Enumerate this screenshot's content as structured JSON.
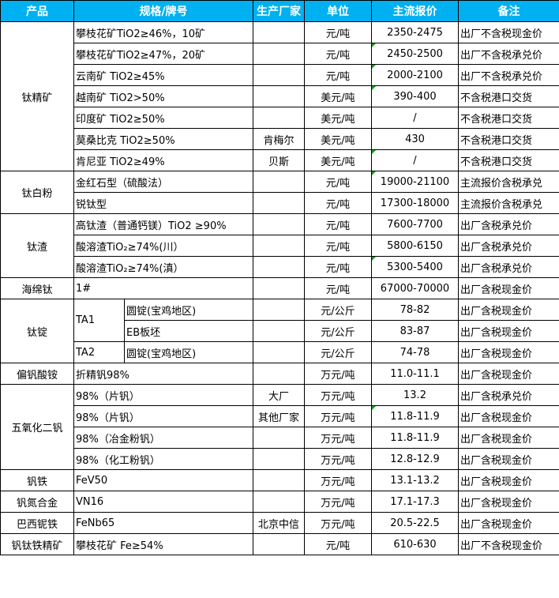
{
  "header": {
    "colors": {
      "header_bg": "#00B0F0",
      "header_text": "#FFFFFF"
    },
    "columns": [
      "产品",
      "规格/牌号",
      "生产厂家",
      "单位",
      "主流报价",
      "备注"
    ]
  },
  "groups": [
    {
      "product": "钛精矿",
      "rows": [
        {
          "spec": "攀枝花矿TiO2≥46%，10矿",
          "maker": "",
          "unit": "元/吨",
          "price": "2350-2475",
          "note": "出厂不含税现金价"
        },
        {
          "spec": "攀枝花矿TiO2≥47%，20矿",
          "maker": "",
          "unit": "元/吨",
          "price": "2450-2500",
          "note": "出厂不含税承兑价"
        },
        {
          "spec": "云南矿 TiO2≥45%",
          "maker": "",
          "unit": "元/吨",
          "price": "2000-2100",
          "note": "出厂不含税承兑价"
        },
        {
          "spec": "越南矿 TiO2>50%",
          "maker": "",
          "unit": "美元/吨",
          "price": "390-400",
          "note": "不含税港口交货"
        },
        {
          "spec": "印度矿 TiO2≥50%",
          "maker": "",
          "unit": "美元/吨",
          "price": "/",
          "note": "不含税港口交货"
        },
        {
          "spec": "莫桑比克 TiO2≥50%",
          "maker": "肯梅尔",
          "unit": "美元/吨",
          "price": "430",
          "note": "不含税港口交货"
        },
        {
          "spec": "肯尼亚 TiO2≥49%",
          "maker": "贝斯",
          "unit": "美元/吨",
          "price": "/",
          "note": "不含税港口交货"
        }
      ]
    },
    {
      "product": "钛白粉",
      "rows": [
        {
          "spec": "金红石型（硫酸法）",
          "maker": "",
          "unit": "元/吨",
          "price": "19000-21100",
          "note": "主流报价含税承兑"
        },
        {
          "spec": "锐钛型",
          "maker": "",
          "unit": "元/吨",
          "price": "17300-18000",
          "note": "主流报价含税承兑"
        }
      ]
    },
    {
      "product": "钛渣",
      "rows": [
        {
          "spec": "高钛渣（普通钙镁）TiO2 ≥90%",
          "maker": "",
          "unit": "元/吨",
          "price": "7600-7700",
          "note": "出厂含税承兑价"
        },
        {
          "spec": "酸溶渣TiO₂≥74%(川）",
          "maker": "",
          "unit": "元/吨",
          "price": "5800-6150",
          "note": "出厂含税承兑价"
        },
        {
          "spec": "酸溶渣TiO₂≥74%(滇）",
          "maker": "",
          "unit": "元/吨",
          "price": "5300-5400",
          "note": "出厂含税承兑价"
        }
      ]
    },
    {
      "product": "海绵钛",
      "rows": [
        {
          "spec": "1#",
          "maker": "",
          "unit": "元/吨",
          "price": "67000-70000",
          "note": "出厂含税现金价"
        }
      ]
    },
    {
      "product": "钛锭",
      "rows": [
        {
          "grade": "TA1",
          "spec": "圆锭(宝鸡地区)",
          "maker": "",
          "unit": "元/公斤",
          "price": "78-82",
          "note": "出厂含税现金价"
        },
        {
          "grade": "TA1",
          "spec": "EB板坯",
          "maker": "",
          "unit": "元/公斤",
          "price": "83-87",
          "note": "出厂含税现金价"
        },
        {
          "grade": "TA2",
          "spec": "圆锭(宝鸡地区)",
          "maker": "",
          "unit": "元/公斤",
          "price": "74-78",
          "note": "出厂含税现金价"
        }
      ]
    },
    {
      "product": "偏钒酸铵",
      "rows": [
        {
          "spec": "折精钒98%",
          "maker": "",
          "unit": "万元/吨",
          "price": "11.0-11.1",
          "note": "出厂含税现金价"
        }
      ]
    },
    {
      "product": "五氧化二钒",
      "rows": [
        {
          "spec": "98%（片钒）",
          "maker": "大厂",
          "unit": "万元/吨",
          "price": "13.2",
          "note": "出厂含税承兑价"
        },
        {
          "spec": "98%（片钒）",
          "maker": "其他厂家",
          "unit": "万元/吨",
          "price": "11.8-11.9",
          "note": "出厂含税现金价"
        },
        {
          "spec": "98%（冶金粉钒）",
          "maker": "",
          "unit": "万元/吨",
          "price": "11.8-11.9",
          "note": "出厂含税现金价"
        },
        {
          "spec": "98%（化工粉钒）",
          "maker": "",
          "unit": "万元/吨",
          "price": "12.8-12.9",
          "note": "出厂含税现金价"
        }
      ]
    },
    {
      "product": "钒铁",
      "rows": [
        {
          "spec": "FeV50",
          "maker": "",
          "unit": "万元/吨",
          "price": "13.1-13.2",
          "note": "出厂含税现金价"
        }
      ]
    },
    {
      "product": "钒氮合金",
      "rows": [
        {
          "spec": "VN16",
          "maker": "",
          "unit": "万元/吨",
          "price": "17.1-17.3",
          "note": "出厂含税现金价"
        }
      ]
    },
    {
      "product": "巴西铌铁",
      "rows": [
        {
          "spec": "FeNb65",
          "maker": "北京中信",
          "unit": "万元/吨",
          "price": "20.5-22.5",
          "note": "出厂含税现金价"
        }
      ]
    },
    {
      "product": "钒钛铁精矿",
      "rows": [
        {
          "spec": "攀枝花矿 Fe≥54%",
          "maker": "",
          "unit": "元/吨",
          "price": "610-630",
          "note": "出厂不含税现金价"
        }
      ]
    }
  ]
}
